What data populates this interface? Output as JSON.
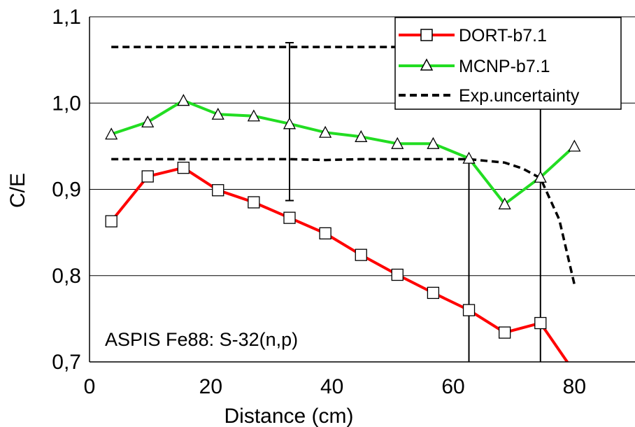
{
  "chart_data": {
    "type": "line",
    "xlabel": "Distance (cm)",
    "ylabel": "C/E",
    "xlim": [
      0,
      90
    ],
    "ylim": [
      0.7,
      1.1
    ],
    "x_ticks": [
      "0",
      "20",
      "40",
      "60",
      "80"
    ],
    "y_ticks": [
      "0,7",
      "0,8",
      "0,9",
      "1,0",
      "1,1"
    ],
    "grid": "horizontal",
    "legend_position": "top-right",
    "annotation": "ASPIS Fe88: S-32(n,p)",
    "series": [
      {
        "name": "DORT-b7.1",
        "color": "#ff0000",
        "marker": "square",
        "x": [
          3.6,
          9.6,
          15.5,
          21.2,
          27.1,
          33.0,
          38.9,
          44.8,
          50.8,
          56.7,
          62.6,
          68.5,
          74.4,
          80.0
        ],
        "y": [
          0.863,
          0.915,
          0.925,
          0.899,
          0.885,
          0.867,
          0.849,
          0.824,
          0.801,
          0.78,
          0.76,
          0.734,
          0.745,
          0.688
        ],
        "marker_points": 13
      },
      {
        "name": "MCNP-b7.1",
        "color": "#22dd22",
        "marker": "triangle",
        "x": [
          3.6,
          9.6,
          15.5,
          21.2,
          27.1,
          33.0,
          38.9,
          44.8,
          50.8,
          56.7,
          62.6,
          68.5,
          74.4,
          80.0
        ],
        "y": [
          0.964,
          0.978,
          1.003,
          0.987,
          0.985,
          0.976,
          0.966,
          0.961,
          0.953,
          0.953,
          0.936,
          0.883,
          0.914,
          0.95
        ]
      },
      {
        "name": "Exp.uncertainty",
        "color": "#000000",
        "style": "dashed",
        "upper": {
          "x": [
            3.6,
            33.0,
            60.0
          ],
          "y": [
            1.065,
            1.065,
            1.065
          ]
        },
        "lower": {
          "x": [
            3.6,
            15.5,
            33.0,
            38.9,
            44.8,
            50.8,
            56.7,
            62.6,
            68.5,
            71.5,
            74.4,
            77.5,
            80.0
          ],
          "y": [
            0.935,
            0.935,
            0.935,
            0.934,
            0.935,
            0.935,
            0.935,
            0.935,
            0.931,
            0.924,
            0.913,
            0.865,
            0.79
          ]
        }
      }
    ],
    "error_bar": {
      "x": 33.0,
      "y_low": 0.887,
      "y_high": 1.07
    },
    "vertical_lines": [
      {
        "x": 62.6,
        "y_low": 0.7,
        "y_high": 0.938
      },
      {
        "x": 74.4,
        "y_low": 0.7,
        "y_high": 1.1
      }
    ]
  }
}
